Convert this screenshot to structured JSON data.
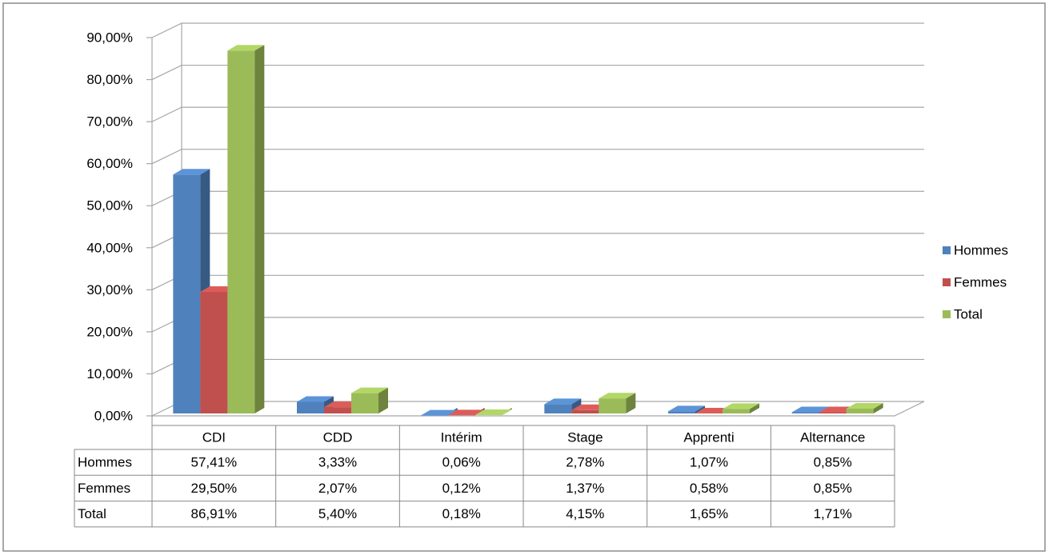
{
  "chart_data": {
    "type": "bar3d",
    "categories": [
      "CDI",
      "CDD",
      "Intérim",
      "Stage",
      "Apprenti",
      "Alternance"
    ],
    "series": [
      {
        "name": "Hommes",
        "color": "#4f81bd",
        "values": [
          57.41,
          3.33,
          0.06,
          2.78,
          1.07,
          0.85
        ],
        "value_labels": [
          "57,41%",
          "3,33%",
          "0,06%",
          "2,78%",
          "1,07%",
          "0,85%"
        ]
      },
      {
        "name": "Femmes",
        "color": "#c0504d",
        "values": [
          29.5,
          2.07,
          0.12,
          1.37,
          0.58,
          0.85
        ],
        "value_labels": [
          "29,50%",
          "2,07%",
          "0,12%",
          "1,37%",
          "0,58%",
          "0,85%"
        ]
      },
      {
        "name": "Total",
        "color": "#9bbb59",
        "values": [
          86.91,
          5.4,
          0.18,
          4.15,
          1.65,
          1.71
        ],
        "value_labels": [
          "86,91%",
          "5,40%",
          "0,18%",
          "4,15%",
          "1,65%",
          "1,71%"
        ]
      }
    ],
    "ylim": [
      0,
      90
    ],
    "yticks": [
      {
        "value": 0,
        "label": "0,00%"
      },
      {
        "value": 10,
        "label": "10,00%"
      },
      {
        "value": 20,
        "label": "20,00%"
      },
      {
        "value": 30,
        "label": "30,00%"
      },
      {
        "value": 40,
        "label": "40,00%"
      },
      {
        "value": 50,
        "label": "50,00%"
      },
      {
        "value": 60,
        "label": "60,00%"
      },
      {
        "value": 70,
        "label": "70,00%"
      },
      {
        "value": 80,
        "label": "80,00%"
      },
      {
        "value": 90,
        "label": "90,00%"
      }
    ],
    "grid": true,
    "legend": "right",
    "data_table": true
  }
}
